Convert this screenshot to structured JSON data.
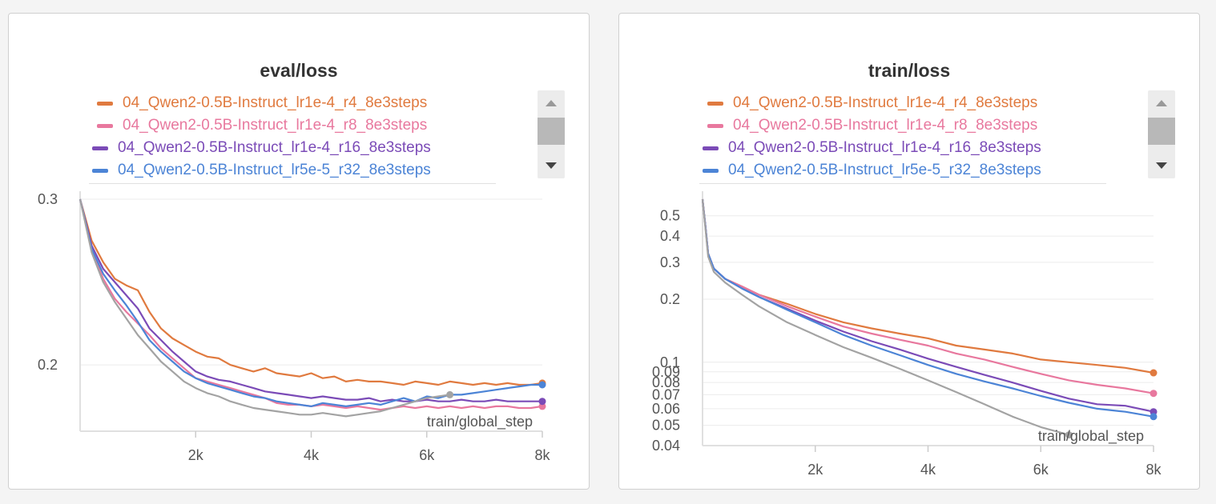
{
  "chart_data": [
    {
      "type": "line",
      "title": "eval/loss",
      "xlabel": "train/global_step",
      "ylabel": "",
      "xlim": [
        0,
        8000
      ],
      "ylim": [
        0.16,
        0.3
      ],
      "y_scale": "linear",
      "x_ticks": [
        2000,
        4000,
        6000,
        8000
      ],
      "x_tick_labels": [
        "2k",
        "4k",
        "6k",
        "8k"
      ],
      "y_ticks": [
        0.2,
        0.3
      ],
      "y_tick_labels": [
        "0.2",
        "0.3"
      ],
      "grid": true,
      "legend_position": "top",
      "series": [
        {
          "name": "04_Qwen2-0.5B-Instruct_lr1e-4_r4_8e3steps",
          "color": "#e07a3f",
          "x": [
            0,
            200,
            400,
            600,
            800,
            1000,
            1200,
            1400,
            1600,
            1800,
            2000,
            2200,
            2400,
            2600,
            2800,
            3000,
            3200,
            3400,
            3600,
            3800,
            4000,
            4200,
            4400,
            4600,
            4800,
            5000,
            5200,
            5400,
            5600,
            5800,
            6000,
            6200,
            6400,
            6600,
            6800,
            7000,
            7200,
            7400,
            7600,
            7800,
            8000
          ],
          "y": [
            0.3,
            0.275,
            0.262,
            0.252,
            0.248,
            0.245,
            0.232,
            0.222,
            0.216,
            0.212,
            0.208,
            0.205,
            0.204,
            0.2,
            0.198,
            0.196,
            0.198,
            0.195,
            0.194,
            0.193,
            0.195,
            0.192,
            0.193,
            0.19,
            0.191,
            0.19,
            0.19,
            0.189,
            0.188,
            0.19,
            0.189,
            0.188,
            0.19,
            0.189,
            0.188,
            0.189,
            0.188,
            0.189,
            0.188,
            0.188,
            0.189
          ]
        },
        {
          "name": "04_Qwen2-0.5B-Instruct_lr1e-4_r8_8e3steps",
          "color": "#e8789e",
          "x": [
            0,
            200,
            400,
            600,
            800,
            1000,
            1200,
            1400,
            1600,
            1800,
            2000,
            2200,
            2400,
            2600,
            2800,
            3000,
            3200,
            3400,
            3600,
            3800,
            4000,
            4200,
            4400,
            4600,
            4800,
            5000,
            5200,
            5400,
            5600,
            5800,
            6000,
            6200,
            6400,
            6600,
            6800,
            7000,
            7200,
            7400,
            7600,
            7800,
            8000
          ],
          "y": [
            0.3,
            0.27,
            0.252,
            0.24,
            0.232,
            0.225,
            0.218,
            0.21,
            0.204,
            0.198,
            0.192,
            0.19,
            0.188,
            0.186,
            0.184,
            0.182,
            0.18,
            0.177,
            0.176,
            0.176,
            0.175,
            0.176,
            0.175,
            0.174,
            0.175,
            0.174,
            0.173,
            0.174,
            0.175,
            0.174,
            0.175,
            0.174,
            0.175,
            0.174,
            0.175,
            0.174,
            0.175,
            0.175,
            0.174,
            0.174,
            0.175
          ]
        },
        {
          "name": "04_Qwen2-0.5B-Instruct_lr1e-4_r16_8e3steps",
          "color": "#7b4bb7",
          "x": [
            0,
            200,
            400,
            600,
            800,
            1000,
            1200,
            1400,
            1600,
            1800,
            2000,
            2200,
            2400,
            2600,
            2800,
            3000,
            3200,
            3400,
            3600,
            3800,
            4000,
            4200,
            4400,
            4600,
            4800,
            5000,
            5200,
            5400,
            5600,
            5800,
            6000,
            6200,
            6400,
            6600,
            6800,
            7000,
            7200,
            7400,
            7600,
            7800,
            8000
          ],
          "y": [
            0.3,
            0.272,
            0.258,
            0.25,
            0.242,
            0.234,
            0.222,
            0.215,
            0.208,
            0.202,
            0.196,
            0.193,
            0.191,
            0.19,
            0.188,
            0.186,
            0.184,
            0.183,
            0.182,
            0.181,
            0.18,
            0.181,
            0.18,
            0.179,
            0.179,
            0.18,
            0.178,
            0.179,
            0.178,
            0.178,
            0.179,
            0.178,
            0.178,
            0.179,
            0.178,
            0.178,
            0.179,
            0.178,
            0.178,
            0.178,
            0.178
          ]
        },
        {
          "name": "04_Qwen2-0.5B-Instruct_lr5e-5_r32_8e3steps",
          "color": "#4c84d6",
          "x": [
            0,
            200,
            400,
            600,
            800,
            1000,
            1200,
            1400,
            1600,
            1800,
            2000,
            2200,
            2400,
            2600,
            2800,
            3000,
            3200,
            3400,
            3600,
            3800,
            4000,
            4200,
            4400,
            4600,
            4800,
            5000,
            5200,
            5400,
            5600,
            5800,
            6000,
            6200,
            6400,
            6600,
            6800,
            7000,
            7200,
            7400,
            7600,
            7800,
            8000
          ],
          "y": [
            0.3,
            0.27,
            0.255,
            0.245,
            0.236,
            0.226,
            0.215,
            0.208,
            0.202,
            0.196,
            0.192,
            0.189,
            0.187,
            0.185,
            0.183,
            0.181,
            0.18,
            0.178,
            0.177,
            0.176,
            0.175,
            0.177,
            0.176,
            0.175,
            0.176,
            0.177,
            0.176,
            0.178,
            0.18,
            0.178,
            0.181,
            0.18,
            0.182,
            0.182,
            0.183,
            0.184,
            0.185,
            0.186,
            0.187,
            0.188,
            0.188
          ]
        },
        {
          "name": "",
          "color": "#a3a3a3",
          "x": [
            0,
            200,
            400,
            600,
            800,
            1000,
            1200,
            1400,
            1600,
            1800,
            2000,
            2200,
            2400,
            2600,
            2800,
            3000,
            3200,
            3400,
            3600,
            3800,
            4000,
            4200,
            4400,
            4600,
            4800,
            5000,
            5200,
            5400,
            5600,
            5800,
            6000,
            6200,
            6400
          ],
          "y": [
            0.3,
            0.268,
            0.25,
            0.238,
            0.228,
            0.218,
            0.21,
            0.202,
            0.196,
            0.19,
            0.186,
            0.183,
            0.181,
            0.178,
            0.176,
            0.174,
            0.173,
            0.172,
            0.171,
            0.17,
            0.17,
            0.171,
            0.17,
            0.169,
            0.17,
            0.171,
            0.172,
            0.174,
            0.176,
            0.178,
            0.18,
            0.181,
            0.182
          ]
        }
      ]
    },
    {
      "type": "line",
      "title": "train/loss",
      "xlabel": "train/global_step",
      "ylabel": "",
      "xlim": [
        0,
        8000
      ],
      "ylim": [
        0.04,
        0.6
      ],
      "y_scale": "log",
      "x_ticks": [
        2000,
        4000,
        6000,
        8000
      ],
      "x_tick_labels": [
        "2k",
        "4k",
        "6k",
        "8k"
      ],
      "y_ticks": [
        0.04,
        0.05,
        0.06,
        0.07,
        0.08,
        0.09,
        0.1,
        0.2,
        0.3,
        0.4,
        0.5
      ],
      "y_tick_labels": [
        "0.04",
        "0.05",
        "0.06",
        "0.07",
        "0.08",
        "0.09",
        "0.1",
        "0.2",
        "0.3",
        "0.4",
        "0.5"
      ],
      "grid": true,
      "legend_position": "top",
      "series": [
        {
          "name": "04_Qwen2-0.5B-Instruct_lr1e-4_r4_8e3steps",
          "color": "#e07a3f",
          "x": [
            0,
            50,
            100,
            200,
            400,
            700,
            1000,
            1500,
            2000,
            2500,
            3000,
            3500,
            4000,
            4500,
            5000,
            5500,
            6000,
            6500,
            7000,
            7500,
            8000
          ],
          "y": [
            0.6,
            0.45,
            0.33,
            0.28,
            0.25,
            0.23,
            0.21,
            0.19,
            0.17,
            0.155,
            0.145,
            0.137,
            0.13,
            0.12,
            0.115,
            0.11,
            0.103,
            0.1,
            0.097,
            0.094,
            0.089
          ]
        },
        {
          "name": "04_Qwen2-0.5B-Instruct_lr1e-4_r8_8e3steps",
          "color": "#e8789e",
          "x": [
            0,
            50,
            100,
            200,
            400,
            700,
            1000,
            1500,
            2000,
            2500,
            3000,
            3500,
            4000,
            4500,
            5000,
            5500,
            6000,
            6500,
            7000,
            7500,
            8000
          ],
          "y": [
            0.6,
            0.45,
            0.33,
            0.28,
            0.25,
            0.23,
            0.21,
            0.185,
            0.165,
            0.148,
            0.137,
            0.128,
            0.12,
            0.11,
            0.103,
            0.095,
            0.088,
            0.082,
            0.078,
            0.075,
            0.071
          ]
        },
        {
          "name": "04_Qwen2-0.5B-Instruct_lr1e-4_r16_8e3steps",
          "color": "#7b4bb7",
          "x": [
            0,
            50,
            100,
            200,
            400,
            700,
            1000,
            1500,
            2000,
            2500,
            3000,
            3500,
            4000,
            4500,
            5000,
            5500,
            6000,
            6500,
            7000,
            7500,
            8000
          ],
          "y": [
            0.6,
            0.45,
            0.33,
            0.28,
            0.25,
            0.225,
            0.205,
            0.18,
            0.158,
            0.14,
            0.126,
            0.115,
            0.104,
            0.095,
            0.087,
            0.08,
            0.073,
            0.067,
            0.063,
            0.062,
            0.058
          ]
        },
        {
          "name": "04_Qwen2-0.5B-Instruct_lr5e-5_r32_8e3steps",
          "color": "#4c84d6",
          "x": [
            0,
            50,
            100,
            200,
            400,
            700,
            1000,
            1500,
            2000,
            2500,
            3000,
            3500,
            4000,
            4500,
            5000,
            5500,
            6000,
            6500,
            7000,
            7500,
            8000
          ],
          "y": [
            0.6,
            0.45,
            0.33,
            0.28,
            0.25,
            0.225,
            0.205,
            0.178,
            0.155,
            0.135,
            0.12,
            0.108,
            0.097,
            0.088,
            0.081,
            0.075,
            0.069,
            0.064,
            0.06,
            0.058,
            0.055
          ]
        },
        {
          "name": "",
          "color": "#a3a3a3",
          "x": [
            0,
            50,
            100,
            200,
            400,
            700,
            1000,
            1500,
            2000,
            2500,
            3000,
            3500,
            4000,
            4500,
            5000,
            5500,
            6000,
            6500
          ],
          "y": [
            0.6,
            0.44,
            0.32,
            0.27,
            0.24,
            0.21,
            0.185,
            0.155,
            0.135,
            0.118,
            0.105,
            0.093,
            0.082,
            0.072,
            0.063,
            0.055,
            0.049,
            0.045
          ]
        }
      ]
    }
  ]
}
